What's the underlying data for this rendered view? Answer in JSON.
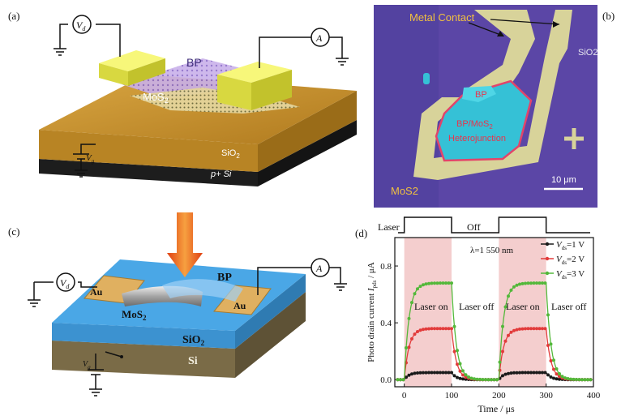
{
  "panel_a": {
    "label": "(a)",
    "vd_meter": "V",
    "vd_sub": "d",
    "a_meter": "A",
    "vg_label": "V",
    "vg_sub": "g",
    "bp": "BP",
    "mos2": "MoS",
    "mos2_sub": "2",
    "sio2": "SiO",
    "sio2_sub": "2",
    "psi": "p+ Si",
    "colors": {
      "gold": "#c8902a",
      "contact": "#eeee55",
      "bp": "#c9b0ea",
      "substrate": "#262626"
    }
  },
  "panel_b": {
    "label": "(b)",
    "metal_contact": "Metal Contact",
    "sio2": "SiO2",
    "bp": "BP",
    "hetero_line1": "BP/MoS",
    "hetero_sub": "2",
    "hetero_line2": "Heterojunction",
    "mos2": "MoS2",
    "scale": "10 μm",
    "colors": {
      "background": "#5b46a6",
      "contact": "#d8d39a",
      "flake": "#35c1d6",
      "outline": "#e2446a"
    }
  },
  "panel_c": {
    "label": "(c)",
    "vd_meter": "V",
    "vd_sub": "d",
    "a_meter": "A",
    "bp": "BP",
    "au_left": "Au",
    "au_right": "Au",
    "mos2": "MoS",
    "mos2_sub": "2",
    "sio2": "SiO",
    "sio2_sub": "2",
    "si": "Si",
    "vg_label": "V",
    "vg_sub": "g",
    "colors": {
      "sio2": "#4aa7e6",
      "si": "#8b7a55",
      "au": "#e0b060",
      "arrow": "#e8501c"
    }
  },
  "panel_d": {
    "label": "(d)",
    "laser_label": "Laser",
    "off_label": "Off",
    "wavelength": "λ=1 550 nm",
    "laser_on": "Laser on",
    "laser_off": "Laser off",
    "ylabel_main": "Photo drain current ",
    "ylabel_i": "I",
    "ylabel_sub": "pds",
    "ylabel_unit": " / μA",
    "xlabel": "Time / μs",
    "legend_v": "V",
    "legend_sub": "ds",
    "legend_values": [
      "=1 V",
      "=2 V",
      "=3 V"
    ]
  },
  "chart_data": {
    "type": "line",
    "xlabel": "Time / μs",
    "ylabel": "Photo drain current Ipds / μA",
    "xlim": [
      -20,
      400
    ],
    "ylim": [
      -0.05,
      1.0
    ],
    "x_ticks": [
      0,
      100,
      200,
      300,
      400
    ],
    "y_ticks": [
      0.0,
      0.4,
      0.8
    ],
    "shaded_intervals": [
      [
        0,
        100
      ],
      [
        200,
        300
      ]
    ],
    "series": [
      {
        "name": "Vds=1 V",
        "color": "#1a1a1a",
        "plateau": 0.05,
        "baseline": 0.0
      },
      {
        "name": "Vds=2 V",
        "color": "#e23b3b",
        "plateau": 0.36,
        "baseline": 0.0
      },
      {
        "name": "Vds=3 V",
        "color": "#53b83a",
        "plateau": 0.68,
        "baseline": 0.0
      }
    ]
  }
}
